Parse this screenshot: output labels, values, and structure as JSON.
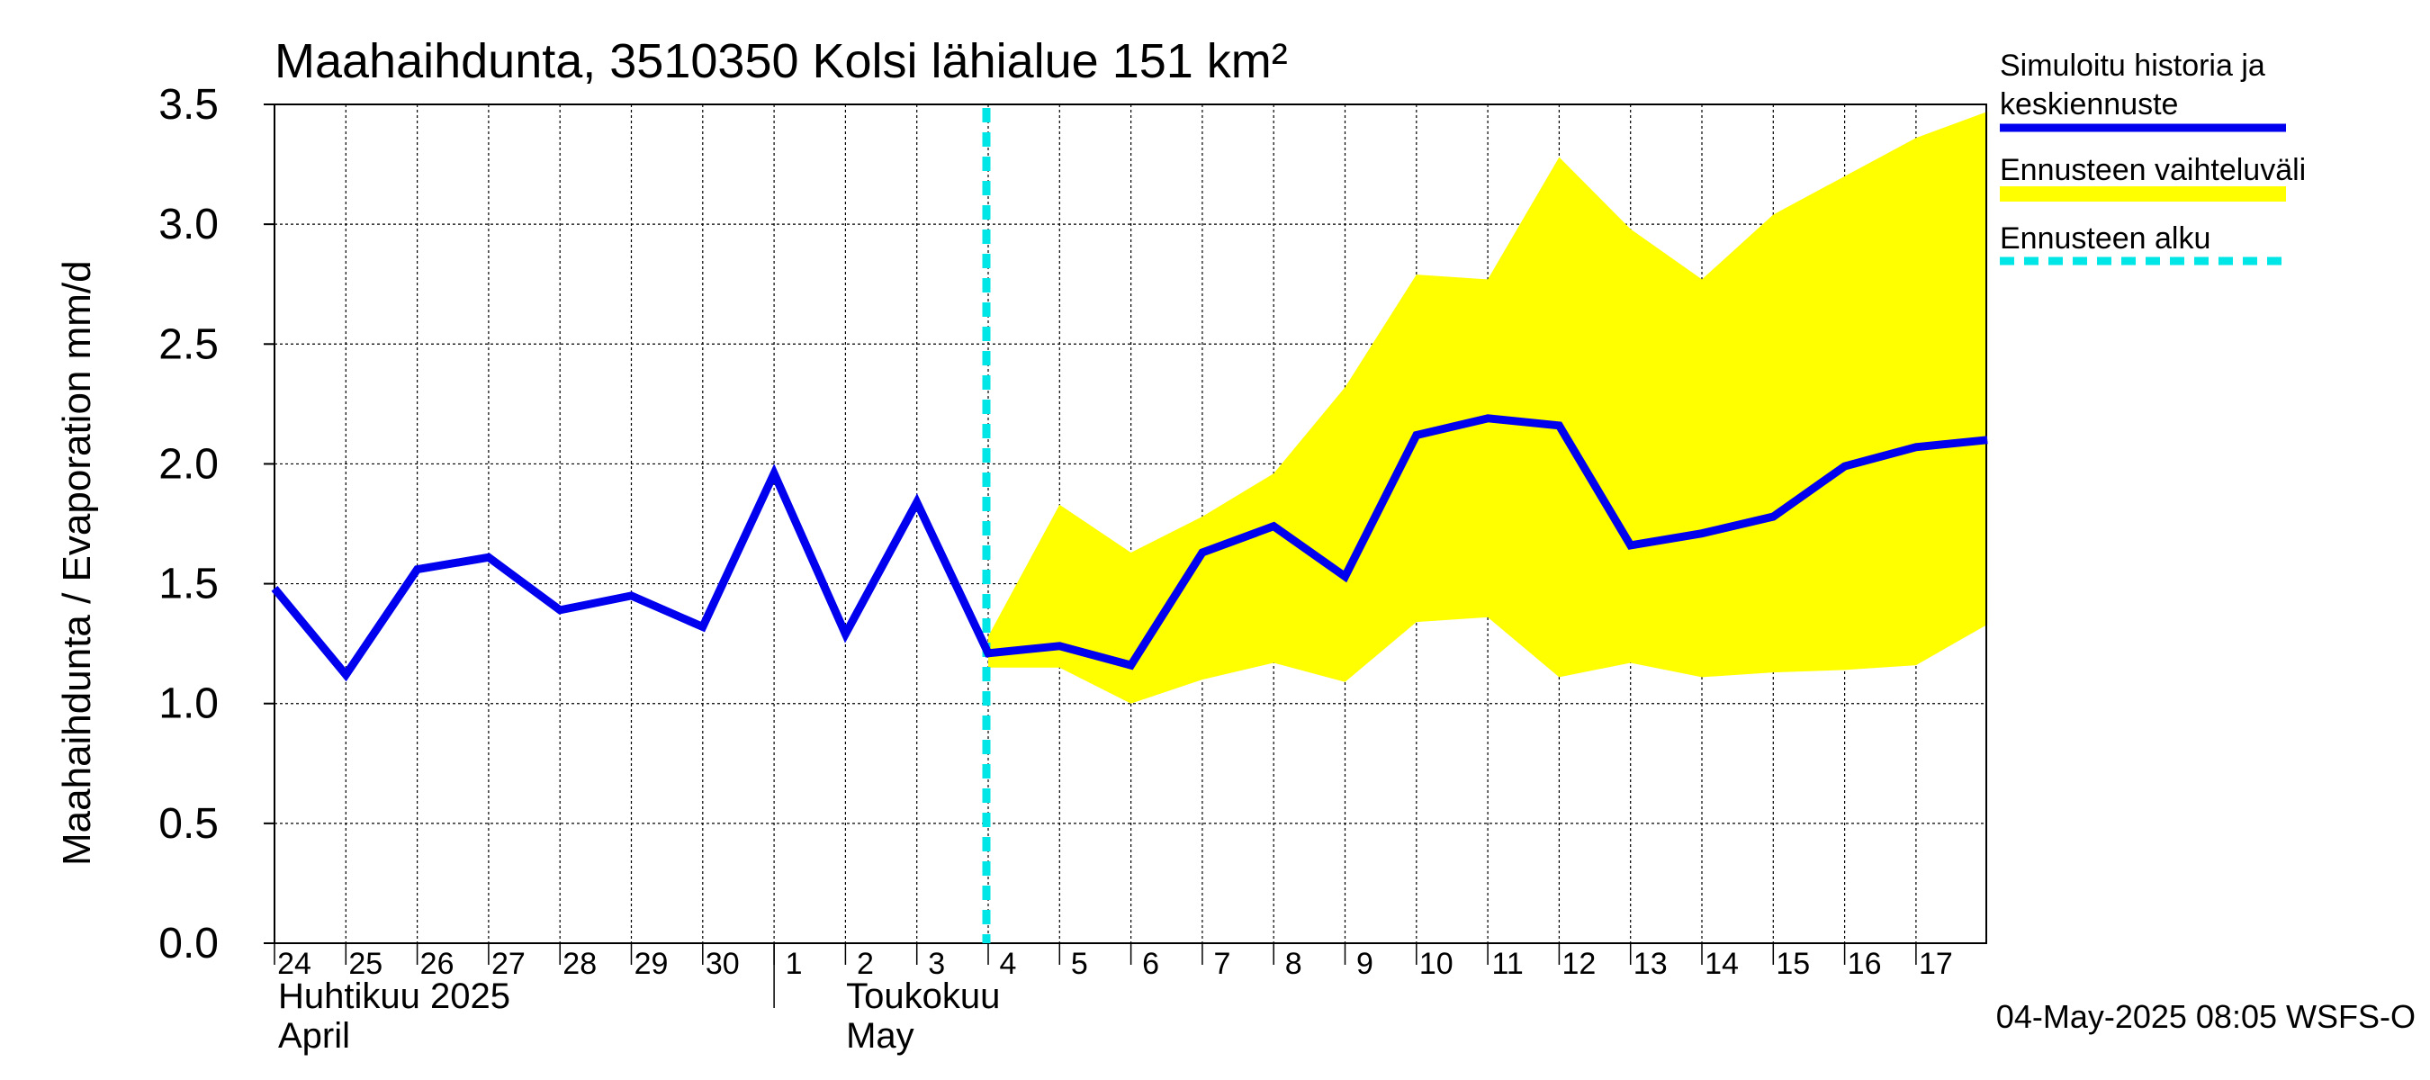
{
  "chart_data": {
    "type": "line",
    "title": "Maahaihdunta, 3510350 Kolsi lähialue 151 km²",
    "ylabel": "Maahaihdunta / Evaporation   mm/d",
    "ylim": [
      0,
      3.5
    ],
    "yticks": [
      "0.0",
      "0.5",
      "1.0",
      "1.5",
      "2.0",
      "2.5",
      "3.0",
      "3.5"
    ],
    "grid": true,
    "legend_position": "right",
    "x_dates": [
      "2025-04-24",
      "2025-04-25",
      "2025-04-26",
      "2025-04-27",
      "2025-04-28",
      "2025-04-29",
      "2025-04-30",
      "2025-05-01",
      "2025-05-02",
      "2025-05-03",
      "2025-05-04",
      "2025-05-05",
      "2025-05-06",
      "2025-05-07",
      "2025-05-08",
      "2025-05-09",
      "2025-05-10",
      "2025-05-11",
      "2025-05-12",
      "2025-05-13",
      "2025-05-14",
      "2025-05-15",
      "2025-05-16",
      "2025-05-17",
      "2025-05-18"
    ],
    "x_tick_labels": [
      "24",
      "25",
      "26",
      "27",
      "28",
      "29",
      "30",
      "1",
      "2",
      "3",
      "4",
      "5",
      "6",
      "7",
      "8",
      "9",
      "10",
      "11",
      "12",
      "13",
      "14",
      "15",
      "16",
      "17"
    ],
    "month_labels": [
      {
        "fi": "Huhtikuu  2025",
        "en": "April",
        "start": "2025-04-24"
      },
      {
        "fi": "Toukokuu",
        "en": "May",
        "start": "2025-05-01"
      }
    ],
    "series": [
      {
        "name": "Simuloitu historia ja keskiennuste",
        "color": "#0000ee",
        "x": [
          "2025-04-24",
          "2025-04-25",
          "2025-04-26",
          "2025-04-27",
          "2025-04-28",
          "2025-04-29",
          "2025-04-30",
          "2025-05-01",
          "2025-05-02",
          "2025-05-03",
          "2025-05-04",
          "2025-05-05",
          "2025-05-06",
          "2025-05-07",
          "2025-05-08",
          "2025-05-09",
          "2025-05-10",
          "2025-05-11",
          "2025-05-12",
          "2025-05-13",
          "2025-05-14",
          "2025-05-15",
          "2025-05-16",
          "2025-05-17",
          "2025-05-18"
        ],
        "values": [
          1.48,
          1.12,
          1.56,
          1.61,
          1.39,
          1.45,
          1.32,
          1.96,
          1.29,
          1.84,
          1.21,
          1.24,
          1.16,
          1.63,
          1.74,
          1.53,
          2.12,
          2.19,
          2.16,
          1.66,
          1.71,
          1.78,
          1.99,
          2.07,
          2.1
        ]
      }
    ],
    "band": {
      "name": "Ennusteen vaihteluväli",
      "color": "#ffff00",
      "x": [
        "2025-05-04",
        "2025-05-05",
        "2025-05-06",
        "2025-05-07",
        "2025-05-08",
        "2025-05-09",
        "2025-05-10",
        "2025-05-11",
        "2025-05-12",
        "2025-05-13",
        "2025-05-14",
        "2025-05-15",
        "2025-05-16",
        "2025-05-17",
        "2025-05-18"
      ],
      "upper": [
        1.28,
        1.83,
        1.63,
        1.78,
        1.96,
        2.32,
        2.79,
        2.77,
        3.28,
        2.98,
        2.77,
        3.04,
        3.2,
        3.36,
        3.47
      ],
      "lower": [
        1.15,
        1.15,
        1.0,
        1.1,
        1.17,
        1.09,
        1.34,
        1.36,
        1.11,
        1.17,
        1.11,
        1.13,
        1.14,
        1.16,
        1.33
      ]
    },
    "forecast_start": {
      "name": "Ennusteen alku",
      "x": "2025-05-04",
      "color": "#00e5e5"
    },
    "legend": [
      {
        "label": "Simuloitu historia ja keskiennuste",
        "kind": "line",
        "color": "#0000ee"
      },
      {
        "label": "Ennusteen vaihteluväli",
        "kind": "band",
        "color": "#ffff00"
      },
      {
        "label": "Ennusteen alku",
        "kind": "dashed",
        "color": "#00e5e5"
      }
    ],
    "footer": "04-May-2025 08:05 WSFS-O"
  }
}
